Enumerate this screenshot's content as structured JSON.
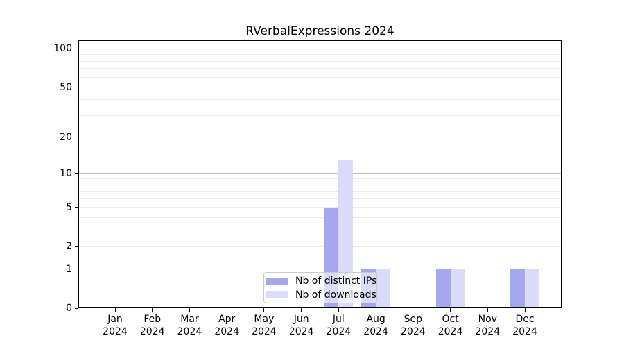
{
  "title": "RVerbalExpressions 2024",
  "chart_data": {
    "type": "bar",
    "title": "RVerbalExpressions 2024",
    "xlabel": "",
    "ylabel": "",
    "categories": [
      "Jan 2024",
      "Feb 2024",
      "Mar 2024",
      "Apr 2024",
      "May 2024",
      "Jun 2024",
      "Jul 2024",
      "Aug 2024",
      "Sep 2024",
      "Oct 2024",
      "Nov 2024",
      "Dec 2024"
    ],
    "series": [
      {
        "name": "Nb of distinct IPs",
        "color": "#a4a8f1",
        "values": [
          0,
          0,
          0,
          0,
          0,
          0,
          5,
          1,
          0,
          1,
          0,
          1
        ]
      },
      {
        "name": "Nb of downloads",
        "color": "#dadcf9",
        "values": [
          0,
          0,
          0,
          0,
          0,
          0,
          13,
          1,
          0,
          1,
          0,
          1
        ]
      }
    ],
    "yscale": "log1p",
    "ylim": [
      0,
      115
    ],
    "yticks": [
      0,
      1,
      2,
      5,
      10,
      20,
      50,
      100
    ],
    "gridlines": {
      "major": [
        1,
        10,
        100
      ],
      "minor": [
        2,
        3,
        4,
        5,
        6,
        7,
        8,
        9,
        20,
        30,
        40,
        50,
        60,
        70,
        80,
        90
      ]
    },
    "grid": true,
    "legend_position": "lower center",
    "colors": {
      "background": "#ffffff",
      "axis": "#000000",
      "major_grid": "#c2c2c2",
      "minor_grid": "#ebebeb",
      "legend_border": "#cbcbcb"
    }
  }
}
